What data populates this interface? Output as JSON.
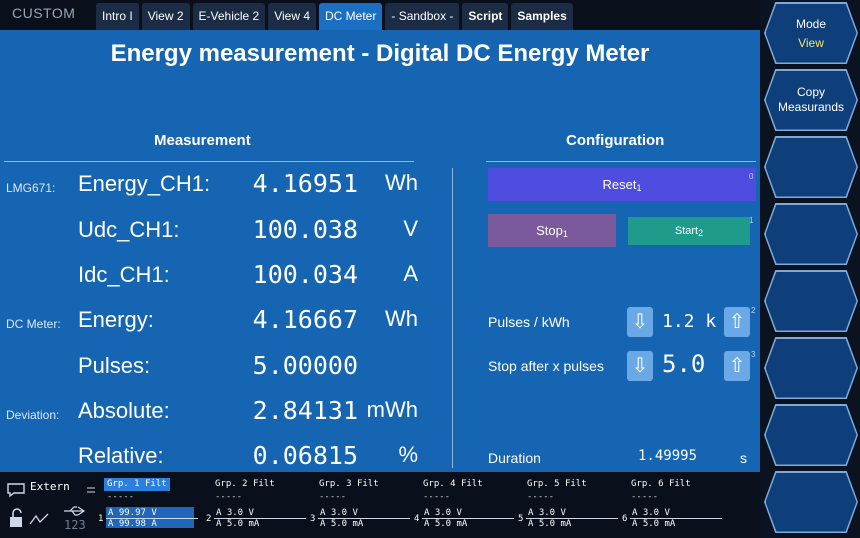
{
  "brand": "CUSTOM",
  "tabs": [
    {
      "label": "Intro I",
      "active": false,
      "bold": false
    },
    {
      "label": "View 2",
      "active": false,
      "bold": false
    },
    {
      "label": "E-Vehicle 2",
      "active": false,
      "bold": false
    },
    {
      "label": "View 4",
      "active": false,
      "bold": false
    },
    {
      "label": "DC Meter",
      "active": true,
      "bold": false
    },
    {
      "label": "- Sandbox -",
      "active": false,
      "bold": false
    },
    {
      "label": "Script",
      "active": false,
      "bold": true
    },
    {
      "label": "Samples",
      "active": false,
      "bold": true
    }
  ],
  "title": "Energy measurement - Digital DC Energy Meter",
  "measurement": {
    "heading": "Measurement",
    "rows": [
      {
        "prefix": "LMG671:",
        "name": "Energy_CH1:",
        "value": "4.16951",
        "unit": "Wh"
      },
      {
        "prefix": "",
        "name": "Udc_CH1:",
        "value": "100.038",
        "unit": "V"
      },
      {
        "prefix": "",
        "name": "Idc_CH1:",
        "value": "100.034",
        "unit": "A"
      },
      {
        "prefix": "DC Meter:",
        "name": "Energy:",
        "value": "4.16667",
        "unit": "Wh"
      },
      {
        "prefix": "",
        "name": "Pulses:",
        "value": "5.00000",
        "unit": ""
      },
      {
        "prefix": "Deviation:",
        "name": "Absolute:",
        "value": "2.84131",
        "unit": "mWh"
      },
      {
        "prefix": "",
        "name": "Relative:",
        "value": "0.06815",
        "unit": "%"
      }
    ]
  },
  "configuration": {
    "heading": "Configuration",
    "reset_label": "Reset",
    "reset_sub": "1",
    "reset_key": "0",
    "stop_label": "Stop",
    "stop_sub": "1",
    "start_label": "Start",
    "start_sub": "2",
    "start_key": "1",
    "pulses_label": "Pulses / kWh",
    "pulses_value": "1.2 k",
    "pulses_key": "2",
    "stopafter_label": "Stop after x pulses",
    "stopafter_value": "5.0",
    "stopafter_key": "3",
    "duration_label": "Duration",
    "duration_value": "1.49995",
    "duration_unit": "s",
    "down_arrow": "⇩",
    "up_arrow": "⇧"
  },
  "sidebar": {
    "mode_label": "Mode",
    "mode_value": "View",
    "copy_label_1": "Copy",
    "copy_label_2": "Measurands"
  },
  "status": {
    "extern_label": "Extern",
    "groups": [
      {
        "header": "Grp. 1",
        "filt": "Filt",
        "dashes": "-----",
        "num": "1",
        "line1": "A 99.97 V",
        "line2": "A 99.98 A",
        "selected": true
      },
      {
        "header": "Grp. 2",
        "filt": "Filt",
        "dashes": "-----",
        "num": "2",
        "line1": "A 3.0 V",
        "line2": "A 5.0 mA",
        "selected": false
      },
      {
        "header": "Grp. 3",
        "filt": "Filt",
        "dashes": "-----",
        "num": "3",
        "line1": "A 3.0 V",
        "line2": "A 5.0 mA",
        "selected": false
      },
      {
        "header": "Grp. 4",
        "filt": "Filt",
        "dashes": "-----",
        "num": "4",
        "line1": "A 3.0 V",
        "line2": "A 5.0 mA",
        "selected": false
      },
      {
        "header": "Grp. 5",
        "filt": "Filt",
        "dashes": "-----",
        "num": "5",
        "line1": "A 3.0 V",
        "line2": "A 5.0 mA",
        "selected": false
      },
      {
        "header": "Grp. 6",
        "filt": "Filt",
        "dashes": "-----",
        "num": "6",
        "line1": "A 3.0 V",
        "line2": "A 5.0 mA",
        "selected": false
      }
    ],
    "icons": [
      "chat-icon",
      "lock-icon",
      "probe-icon",
      "usb-icon"
    ],
    "usb_digits": "123"
  },
  "colors": {
    "panel": "#1565b3",
    "active_tab": "#1b6fc3",
    "reset_button": "#4e4de0",
    "stop_button": "#7a5a9a",
    "start_button": "#1f9b8c",
    "mode_value": "#f0e66a"
  }
}
